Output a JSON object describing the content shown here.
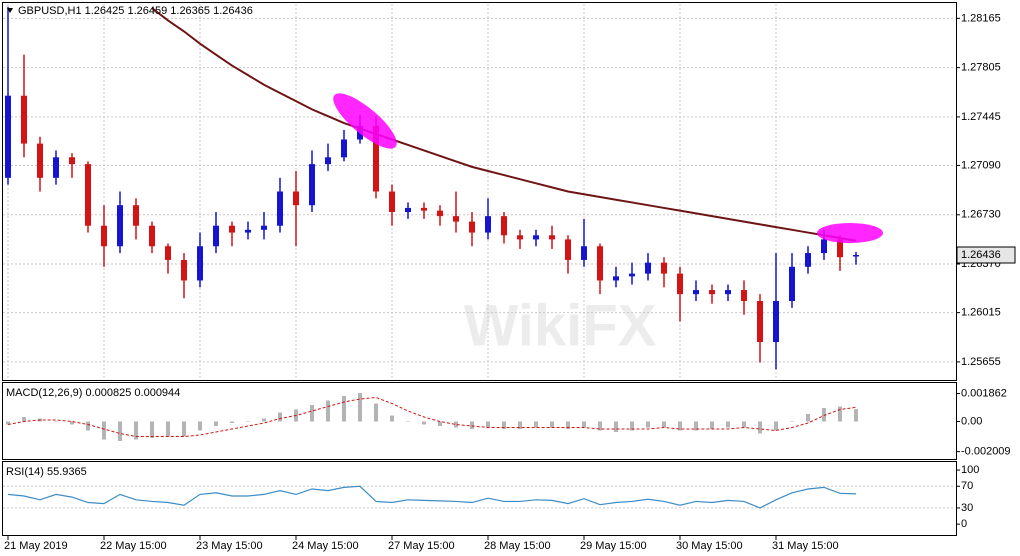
{
  "chart_data": [
    {
      "type": "candlestick",
      "title": "GBPUSD,H1  1.26425 1.26459 1.26365 1.26436",
      "categories": [
        "21 May 2019",
        null,
        null,
        null,
        null,
        null,
        "22 May 15:00",
        null,
        null,
        null,
        null,
        null,
        "23 May 15:00",
        null,
        null,
        null,
        null,
        null,
        "24 May 15:00",
        null,
        null,
        null,
        null,
        null,
        "27 May 15:00",
        null,
        null,
        null,
        null,
        null,
        "28 May 15:00",
        null,
        null,
        null,
        null,
        null,
        "29 May 15:00",
        null,
        null,
        null,
        null,
        null,
        "30 May 15:00",
        null,
        null,
        null,
        null,
        null,
        "31 May 15:00",
        null,
        null,
        null,
        null,
        null
      ],
      "open": [
        1.27,
        1.276,
        1.2725,
        1.27,
        1.2715,
        1.271,
        1.2665,
        1.265,
        1.268,
        1.2665,
        1.265,
        1.264,
        1.2625,
        1.265,
        1.2665,
        1.266,
        1.2662,
        1.2665,
        1.269,
        1.268,
        1.271,
        1.2715,
        1.2728,
        1.2738,
        1.269,
        1.2675,
        1.2678,
        1.2676,
        1.2672,
        1.2668,
        1.266,
        1.2672,
        1.2658,
        1.2655,
        1.2658,
        1.2655,
        1.264,
        1.265,
        1.2625,
        1.2628,
        1.263,
        1.2638,
        1.263,
        1.2615,
        1.2618,
        1.2615,
        1.2618,
        1.261,
        1.258,
        1.261,
        1.2635,
        1.2645,
        1.2655,
        1.26425
      ],
      "high": [
        1.2825,
        1.279,
        1.273,
        1.272,
        1.2718,
        1.2712,
        1.268,
        1.269,
        1.2685,
        1.2668,
        1.2652,
        1.2645,
        1.266,
        1.2675,
        1.2668,
        1.2668,
        1.2675,
        1.27,
        1.2705,
        1.272,
        1.2725,
        1.2735,
        1.2746,
        1.2745,
        1.2695,
        1.2682,
        1.2682,
        1.268,
        1.269,
        1.2675,
        1.2685,
        1.2675,
        1.2662,
        1.2662,
        1.2665,
        1.2658,
        1.267,
        1.2652,
        1.2635,
        1.2638,
        1.2645,
        1.2642,
        1.2635,
        1.2625,
        1.2622,
        1.2622,
        1.2625,
        1.2615,
        1.2645,
        1.2645,
        1.265,
        1.2662,
        1.2658,
        1.26459
      ],
      "low": [
        1.2695,
        1.2715,
        1.269,
        1.2695,
        1.27,
        1.266,
        1.2635,
        1.2645,
        1.2655,
        1.2645,
        1.263,
        1.2612,
        1.262,
        1.2645,
        1.265,
        1.2655,
        1.2655,
        1.266,
        1.265,
        1.2675,
        1.2705,
        1.2712,
        1.2725,
        1.2685,
        1.2665,
        1.267,
        1.267,
        1.2665,
        1.266,
        1.265,
        1.2655,
        1.2652,
        1.2648,
        1.265,
        1.2648,
        1.263,
        1.2635,
        1.2615,
        1.262,
        1.2622,
        1.2625,
        1.262,
        1.2595,
        1.261,
        1.2608,
        1.261,
        1.26,
        1.2565,
        1.256,
        1.2605,
        1.263,
        1.264,
        1.2632,
        1.26365
      ],
      "close": [
        1.276,
        1.2725,
        1.27,
        1.2715,
        1.271,
        1.2665,
        1.265,
        1.268,
        1.2665,
        1.265,
        1.264,
        1.2625,
        1.265,
        1.2665,
        1.266,
        1.2662,
        1.2665,
        1.269,
        1.268,
        1.271,
        1.2715,
        1.2728,
        1.2738,
        1.269,
        1.2675,
        1.2678,
        1.2676,
        1.2672,
        1.2668,
        1.266,
        1.2672,
        1.2658,
        1.2655,
        1.2658,
        1.2655,
        1.264,
        1.265,
        1.2625,
        1.2628,
        1.263,
        1.2638,
        1.263,
        1.2615,
        1.2618,
        1.2615,
        1.2618,
        1.261,
        1.258,
        1.261,
        1.2635,
        1.2645,
        1.2655,
        1.2642,
        1.26436
      ],
      "up_color": "#1414d2",
      "down_color": "#d21414",
      "ma": {
        "color": "#6e1414",
        "values": [
          null,
          null,
          null,
          null,
          null,
          null,
          null,
          null,
          null,
          1.2824,
          1.2815,
          1.2807,
          1.2798,
          1.279,
          1.2782,
          1.2775,
          1.2768,
          1.2762,
          1.2756,
          1.275,
          1.2745,
          1.274,
          1.2736,
          1.2732,
          1.2728,
          1.2724,
          1.272,
          1.2716,
          1.2712,
          1.2708,
          1.2705,
          1.2702,
          1.2699,
          1.2696,
          1.2693,
          1.269,
          1.2688,
          1.2686,
          1.2684,
          1.2682,
          1.268,
          1.2678,
          1.2676,
          1.2674,
          1.2672,
          1.267,
          1.2668,
          1.2666,
          1.2664,
          1.2662,
          1.266,
          1.2658,
          1.2656,
          1.2654
        ]
      },
      "last_price": 1.26436,
      "ylim": [
        1.2553,
        1.2827
      ],
      "yticks": [
        1.28165,
        1.27805,
        1.27445,
        {
          "value": 1.2709,
          "label": "1.27090"
        },
        {
          "value": 1.2673,
          "label": "1.26730"
        },
        {
          "value": 1.2637,
          "label": "1.26370"
        },
        1.26015,
        1.25655
      ],
      "grid": true,
      "watermark": "WikiFX"
    },
    {
      "type": "macd",
      "title": "MACD(12,26,9) 0.000825 0.000944",
      "values": [
        -0.0002,
        0.0003,
        0.0002,
        0.0,
        -0.0002,
        -0.0006,
        -0.0012,
        -0.0013,
        -0.0012,
        -0.0011,
        -0.001,
        -0.001,
        -0.0006,
        -0.0003,
        -0.0001,
        0.0,
        0.0002,
        0.0006,
        0.0008,
        0.0011,
        0.0014,
        0.0017,
        0.0019,
        0.0012,
        0.0004,
        0.0,
        -0.0002,
        -0.0003,
        -0.0004,
        -0.0005,
        -0.0004,
        -0.0005,
        -0.0005,
        -0.0004,
        -0.0004,
        -0.0005,
        -0.0004,
        -0.0006,
        -0.0007,
        -0.0006,
        -0.0004,
        -0.0004,
        -0.0006,
        -0.0006,
        -0.0005,
        -0.0004,
        -0.0004,
        -0.0008,
        -0.0006,
        0.0,
        0.0005,
        0.0009,
        0.001,
        0.000825
      ],
      "color": "#b4b4b4",
      "signal": {
        "color": "#d21414",
        "values": [
          -0.0002,
          0.0,
          0.0001,
          0.0001,
          0.0,
          -0.0002,
          -0.0005,
          -0.0008,
          -0.001,
          -0.001,
          -0.001,
          -0.001,
          -0.0009,
          -0.0007,
          -0.0005,
          -0.0003,
          -0.0001,
          0.0002,
          0.0004,
          0.0007,
          0.001,
          0.0013,
          0.0015,
          0.0016,
          0.0012,
          0.0007,
          0.0003,
          0.0,
          -0.0002,
          -0.0003,
          -0.0004,
          -0.0004,
          -0.0004,
          -0.0004,
          -0.0004,
          -0.0004,
          -0.0004,
          -0.0005,
          -0.0005,
          -0.0005,
          -0.0005,
          -0.0004,
          -0.0005,
          -0.0005,
          -0.0005,
          -0.0005,
          -0.0004,
          -0.0005,
          -0.0006,
          -0.0004,
          -0.0001,
          0.0004,
          0.0008,
          0.000944
        ]
      },
      "ylim": [
        -0.0025,
        0.0025
      ],
      "yticks": [
        0.001862,
        {
          "value": 0,
          "label": "0.00"
        },
        -0.002009
      ]
    },
    {
      "type": "rsi",
      "title": "RSI(14) 55.9365",
      "values": [
        55,
        52,
        45,
        55,
        50,
        40,
        38,
        55,
        45,
        42,
        40,
        35,
        55,
        58,
        52,
        52,
        55,
        62,
        55,
        65,
        62,
        68,
        70,
        42,
        40,
        45,
        44,
        43,
        42,
        40,
        48,
        42,
        42,
        45,
        44,
        38,
        47,
        36,
        40,
        42,
        46,
        42,
        35,
        42,
        40,
        44,
        42,
        30,
        45,
        58,
        65,
        68,
        57,
        55.9365
      ],
      "color": "#3c8cc8",
      "ylim": [
        -20,
        113
      ],
      "yticks": [
        100,
        70,
        30,
        0
      ],
      "levels": [
        70,
        30
      ]
    }
  ]
}
